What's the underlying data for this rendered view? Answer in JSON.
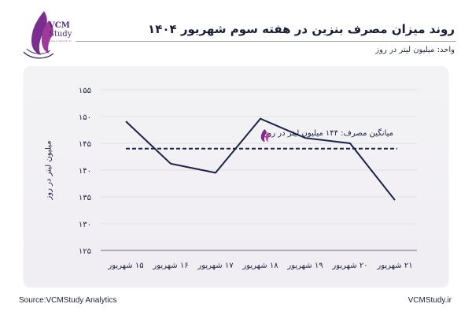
{
  "logo": {
    "line1": "VCM",
    "line2": "Study",
    "line3": "www.vcmstudy.ir"
  },
  "header": {
    "title": "روند میزان مصرف بنزین در هفته سوم شهریور ۱۴۰۴",
    "unit": "واحد: میلیون لیتر در روز"
  },
  "axis": {
    "ylabel": "میلیون لیتر در روز"
  },
  "average": {
    "label": "میانگین مصرف: ۱۴۴ میلیون لیتر در روز",
    "value": 144
  },
  "footer": {
    "source": "Source:VCMStudy Analytics",
    "site": "VCMStudy.ir"
  },
  "colors": {
    "line": "#1a2447",
    "grid": "#e2e0e6",
    "logo_purple": "#7a2f8f",
    "logo_pink": "#c0409a"
  },
  "chart_data": {
    "type": "line",
    "title": "روند میزان مصرف بنزین در هفته سوم شهریور ۱۴۰۴",
    "subtitle": "واحد: میلیون لیتر در روز",
    "xlabel": "",
    "ylabel": "میلیون لیتر در روز",
    "categories": [
      "۱۵ شهریور",
      "۱۶ شهریور",
      "۱۷ شهریور",
      "۱۸ شهریور",
      "۱۹ شهریور",
      "۲۰ شهریور",
      "۲۱ شهریور"
    ],
    "series": [
      {
        "name": "مصرف بنزین",
        "values": [
          149.1,
          141.2,
          139.5,
          149.6,
          146.0,
          145.0,
          134.4
        ]
      }
    ],
    "reference_lines": [
      {
        "label": "میانگین مصرف: ۱۴۴ میلیون لیتر در روز",
        "value": 144,
        "style": "dashed"
      }
    ],
    "yticks": [
      "۱۵۵",
      "۱۵۰",
      "۱۴۵",
      "۱۴۰",
      "۱۳۵",
      "۱۳۰",
      "۱۲۵"
    ],
    "ytick_values": [
      155,
      150,
      145,
      140,
      135,
      130,
      125
    ],
    "ylim": [
      125,
      155
    ],
    "grid": true,
    "legend": "none",
    "source": "Source:VCMStudy Analytics"
  }
}
